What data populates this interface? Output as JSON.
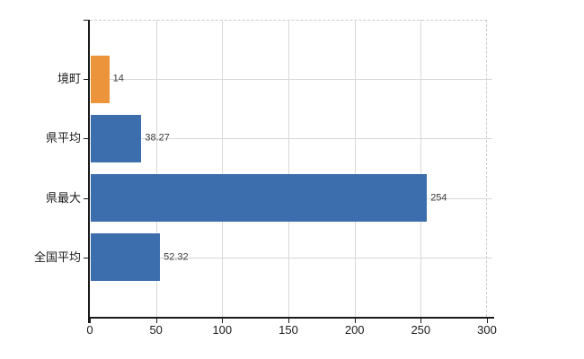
{
  "chart_data": {
    "type": "bar",
    "orientation": "horizontal",
    "title": "",
    "xlabel": "",
    "ylabel": "",
    "categories": [
      "境町",
      "県平均",
      "県最大",
      "全国平均"
    ],
    "values": [
      14,
      38.27,
      254,
      52.32
    ],
    "value_labels": [
      "14",
      "38.27",
      "254",
      "52.32"
    ],
    "bar_colors": [
      "#EC943B",
      "#3C6DAC",
      "#3C6DAC",
      "#3C6DAC"
    ],
    "x_ticks": [
      0,
      50,
      100,
      150,
      200,
      250,
      300
    ],
    "x_tick_labels": [
      "0",
      "50",
      "100",
      "150",
      "200",
      "250",
      "300"
    ],
    "xlim": [
      0,
      300
    ],
    "grid": true,
    "legend": false
  },
  "colors": {
    "background": "#ffffff",
    "axis": "#1a1a1a",
    "gridline": "#d8d8d8",
    "plot_border": "#cccccc",
    "tick_text": "#1a1a1a",
    "value_text": "#3a3a3a",
    "bar_blue": "#3C6DAC",
    "bar_orange": "#EC943B"
  }
}
